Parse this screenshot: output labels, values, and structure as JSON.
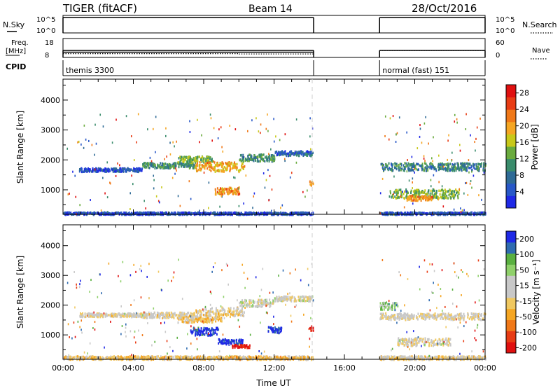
{
  "header": {
    "radar": "TIGER (fitACF)",
    "beam": "Beam 14",
    "date": "28/Oct/2016"
  },
  "params": {
    "nsky_label": "N.Sky",
    "nsearch_label": "N.Search",
    "freq_label": "Freq.",
    "freq_unit": "[MHz]",
    "nave_label": "Nave",
    "cpid_label": "CPID",
    "nsky_ticks": [
      "10^5",
      "10^0"
    ],
    "nsearch_ticks": [
      "10^5",
      "10^0"
    ],
    "freq_ticks": [
      "18",
      "8"
    ],
    "nave_ticks": [
      "60",
      "0"
    ],
    "cpid_segments": [
      {
        "start": 0.0,
        "end": 14.25,
        "label": "themis 3300"
      },
      {
        "start": 18.0,
        "end": 24.0,
        "label": "normal (fast) 151"
      }
    ],
    "data_segments": [
      [
        0.0,
        14.25
      ],
      [
        18.0,
        24.0
      ]
    ],
    "freq_mhz": [
      {
        "start": 0.0,
        "end": 14.25,
        "value": 10.8
      }
    ],
    "nave_dotted": [
      {
        "start": 0.0,
        "end": 10.0,
        "value": 12
      },
      {
        "start": 10.0,
        "end": 14.25,
        "value": 11
      },
      {
        "start": 18.0,
        "end": 24.0,
        "value": 22
      }
    ]
  },
  "chart_data": [
    {
      "type": "heatmap",
      "name": "power",
      "ylabel": "Slant Range [km]",
      "ylim": [
        180,
        4700
      ],
      "xlim": [
        0,
        24
      ],
      "yticks": [
        "1000",
        "2000",
        "3000",
        "4000"
      ],
      "colorbar": {
        "label": "Power [dB]",
        "ticks": [
          "4",
          "8",
          "12",
          "16",
          "20",
          "24",
          "28"
        ],
        "range": [
          0,
          30
        ],
        "colors": [
          "#1f29e6",
          "#2858c8",
          "#2f6b96",
          "#3a8c6c",
          "#6aab3e",
          "#c8c81a",
          "#f5a623",
          "#f07818",
          "#e83c14",
          "#e01010"
        ]
      },
      "echo_regions": [
        {
          "t0": 0.9,
          "t1": 4.5,
          "r": 1700,
          "dr": 60,
          "level": 0.15
        },
        {
          "t0": 4.5,
          "t1": 7.5,
          "r": 1850,
          "dr": 90,
          "level": 0.35
        },
        {
          "t0": 6.5,
          "t1": 8.5,
          "r": 2050,
          "dr": 100,
          "level": 0.45
        },
        {
          "t0": 7.5,
          "t1": 10.3,
          "r": 1800,
          "dr": 160,
          "level": 0.65
        },
        {
          "t0": 8.6,
          "t1": 10.0,
          "r": 1000,
          "dr": 120,
          "level": 0.7
        },
        {
          "t0": 10.0,
          "t1": 12.0,
          "r": 2100,
          "dr": 120,
          "level": 0.35
        },
        {
          "t0": 12.0,
          "t1": 14.2,
          "r": 2250,
          "dr": 80,
          "level": 0.2
        },
        {
          "t0": 14.0,
          "t1": 14.2,
          "r": 1250,
          "dr": 80,
          "level": 0.6
        },
        {
          "t0": 18.0,
          "t1": 24.0,
          "r": 1800,
          "dr": 130,
          "level": 0.3
        },
        {
          "t0": 18.5,
          "t1": 22.5,
          "r": 900,
          "dr": 150,
          "level": 0.45
        },
        {
          "t0": 19.5,
          "t1": 21.0,
          "r": 750,
          "dr": 80,
          "level": 0.7
        },
        {
          "t0": 0.0,
          "t1": 14.2,
          "r": 240,
          "dr": 40,
          "level": 0.15
        },
        {
          "t0": 18.0,
          "t1": 24.0,
          "r": 240,
          "dr": 40,
          "level": 0.15
        }
      ]
    },
    {
      "type": "heatmap",
      "name": "velocity",
      "ylabel": "Slant Range [km]",
      "xlabel": "Time UT",
      "ylim": [
        180,
        4700
      ],
      "xlim": [
        0,
        24
      ],
      "yticks": [
        "1000",
        "2000",
        "3000",
        "4000"
      ],
      "xticks": [
        "00:00",
        "04:00",
        "08:00",
        "12:00",
        "16:00",
        "20:00",
        "00:00"
      ],
      "colorbar": {
        "label": "Velocity [m s⁻¹]",
        "ticks": [
          "200",
          "100",
          "50",
          "15",
          "-15",
          "-50",
          "-100",
          "-200"
        ],
        "range": [
          -250,
          250
        ],
        "colors": [
          "#e01010",
          "#e83c14",
          "#f07818",
          "#f5a623",
          "#f0c860",
          "#c8c8c8",
          "#c8c8c8",
          "#8fd06a",
          "#5ab040",
          "#2f6bb0",
          "#1f29e6"
        ]
      },
      "echo_regions": [
        {
          "t0": 0.9,
          "t1": 4.5,
          "r": 1700,
          "dr": 60,
          "level": 0.5
        },
        {
          "t0": 4.5,
          "t1": 7.5,
          "r": 1700,
          "dr": 90,
          "level": 0.48
        },
        {
          "t0": 6.5,
          "t1": 9.0,
          "r": 1550,
          "dr": 100,
          "level": 0.4
        },
        {
          "t0": 7.5,
          "t1": 10.3,
          "r": 1800,
          "dr": 160,
          "level": 0.45
        },
        {
          "t0": 7.2,
          "t1": 8.8,
          "r": 1150,
          "dr": 130,
          "level": 0.95
        },
        {
          "t0": 8.8,
          "t1": 10.2,
          "r": 800,
          "dr": 90,
          "level": 0.97
        },
        {
          "t0": 9.6,
          "t1": 10.6,
          "r": 650,
          "dr": 50,
          "level": 0.05
        },
        {
          "t0": 11.6,
          "t1": 12.4,
          "r": 1200,
          "dr": 100,
          "level": 0.95
        },
        {
          "t0": 10.0,
          "t1": 12.0,
          "r": 2100,
          "dr": 120,
          "level": 0.55
        },
        {
          "t0": 12.0,
          "t1": 14.2,
          "r": 2250,
          "dr": 80,
          "level": 0.52
        },
        {
          "t0": 14.0,
          "t1": 14.2,
          "r": 1250,
          "dr": 80,
          "level": 0.05
        },
        {
          "t0": 18.0,
          "t1": 24.0,
          "r": 1650,
          "dr": 110,
          "level": 0.5
        },
        {
          "t0": 18.0,
          "t1": 19.0,
          "r": 2000,
          "dr": 120,
          "level": 0.7
        },
        {
          "t0": 19.0,
          "t1": 22.0,
          "r": 800,
          "dr": 130,
          "level": 0.5
        },
        {
          "t0": 0.0,
          "t1": 14.2,
          "r": 260,
          "dr": 60,
          "level": 0.4
        },
        {
          "t0": 18.0,
          "t1": 24.0,
          "r": 260,
          "dr": 60,
          "level": 0.48
        }
      ]
    }
  ]
}
